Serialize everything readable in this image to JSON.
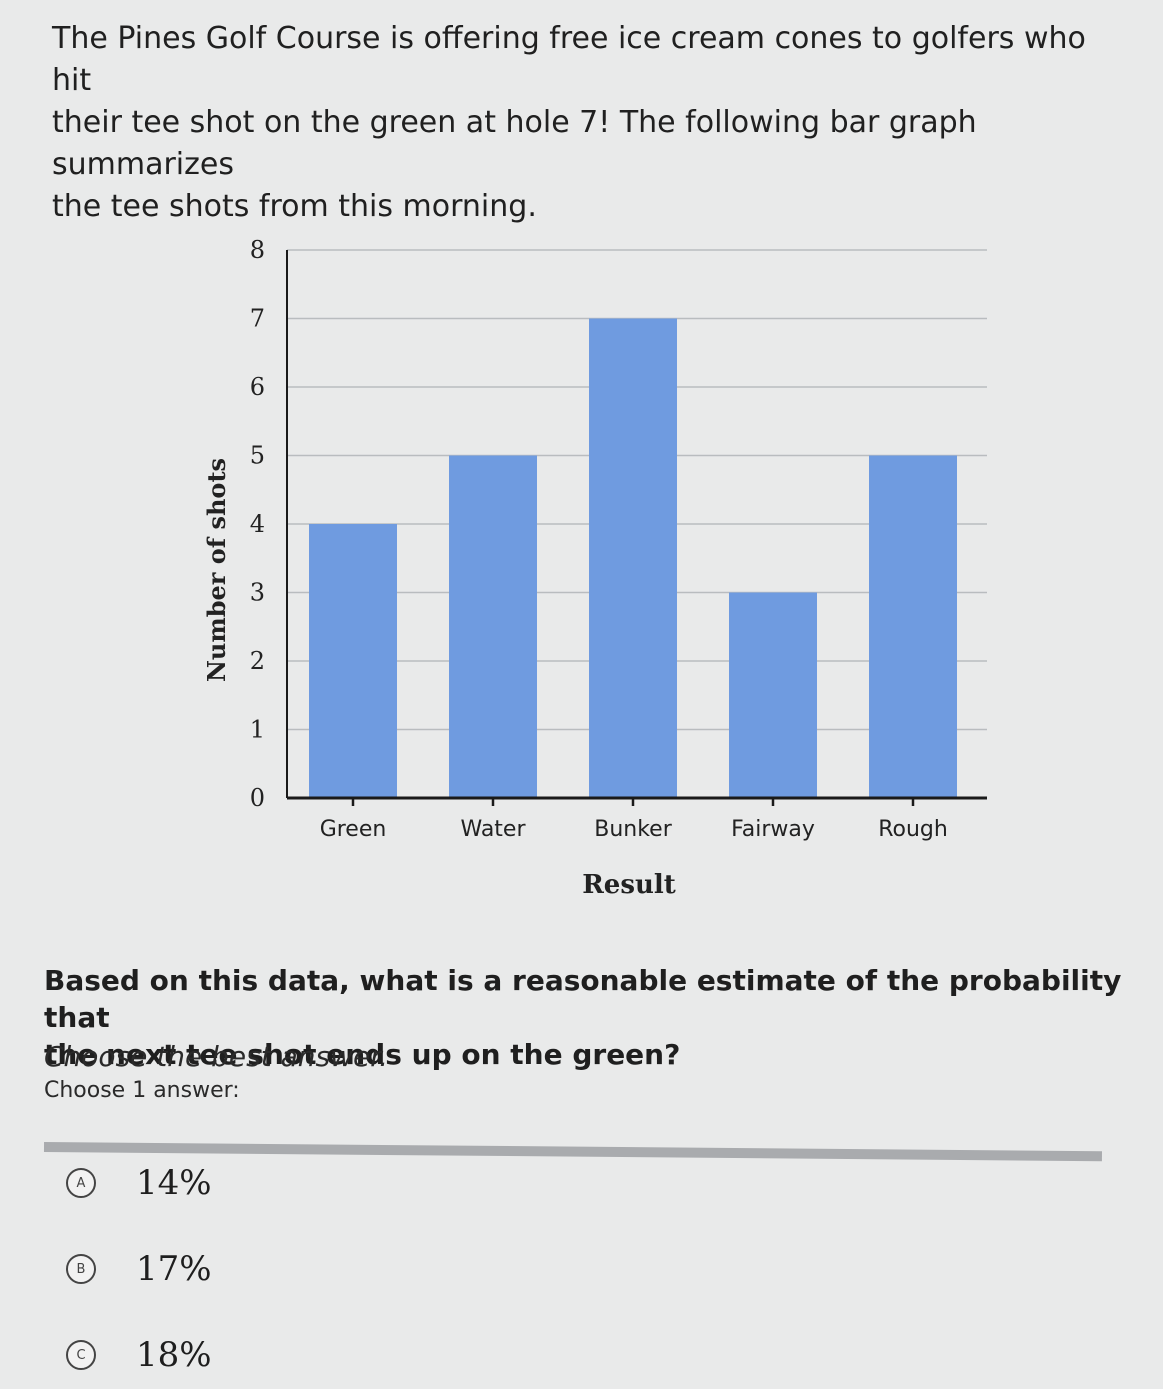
{
  "intro": {
    "line1": "The Pines Golf Course is offering free ice cream cones to golfers who hit",
    "line2": "their tee shot on the green at hole 7! The following bar graph summarizes",
    "line3": "the tee shots from this morning."
  },
  "chart_data": {
    "type": "bar",
    "categories": [
      "Green",
      "Water",
      "Bunker",
      "Fairway",
      "Rough"
    ],
    "values": [
      4,
      5,
      7,
      3,
      5
    ],
    "title": "",
    "xlabel": "Result",
    "ylabel": "Number of shots",
    "ylim": [
      0,
      8
    ],
    "yticks": [
      "0",
      "1",
      "2",
      "3",
      "4",
      "5",
      "6",
      "7",
      "8"
    ],
    "grid": true,
    "bar_color": "#6f9be0"
  },
  "question": {
    "line1": "Based on this data, what is a reasonable estimate of the probability that",
    "line2": "the next tee shot ends up on the green?",
    "hint": "Choose the best answer.",
    "choose_label": "Choose 1 answer:"
  },
  "choices": [
    {
      "letter": "A",
      "text": "14%"
    },
    {
      "letter": "B",
      "text": "17%"
    },
    {
      "letter": "C",
      "text": "18%"
    }
  ]
}
